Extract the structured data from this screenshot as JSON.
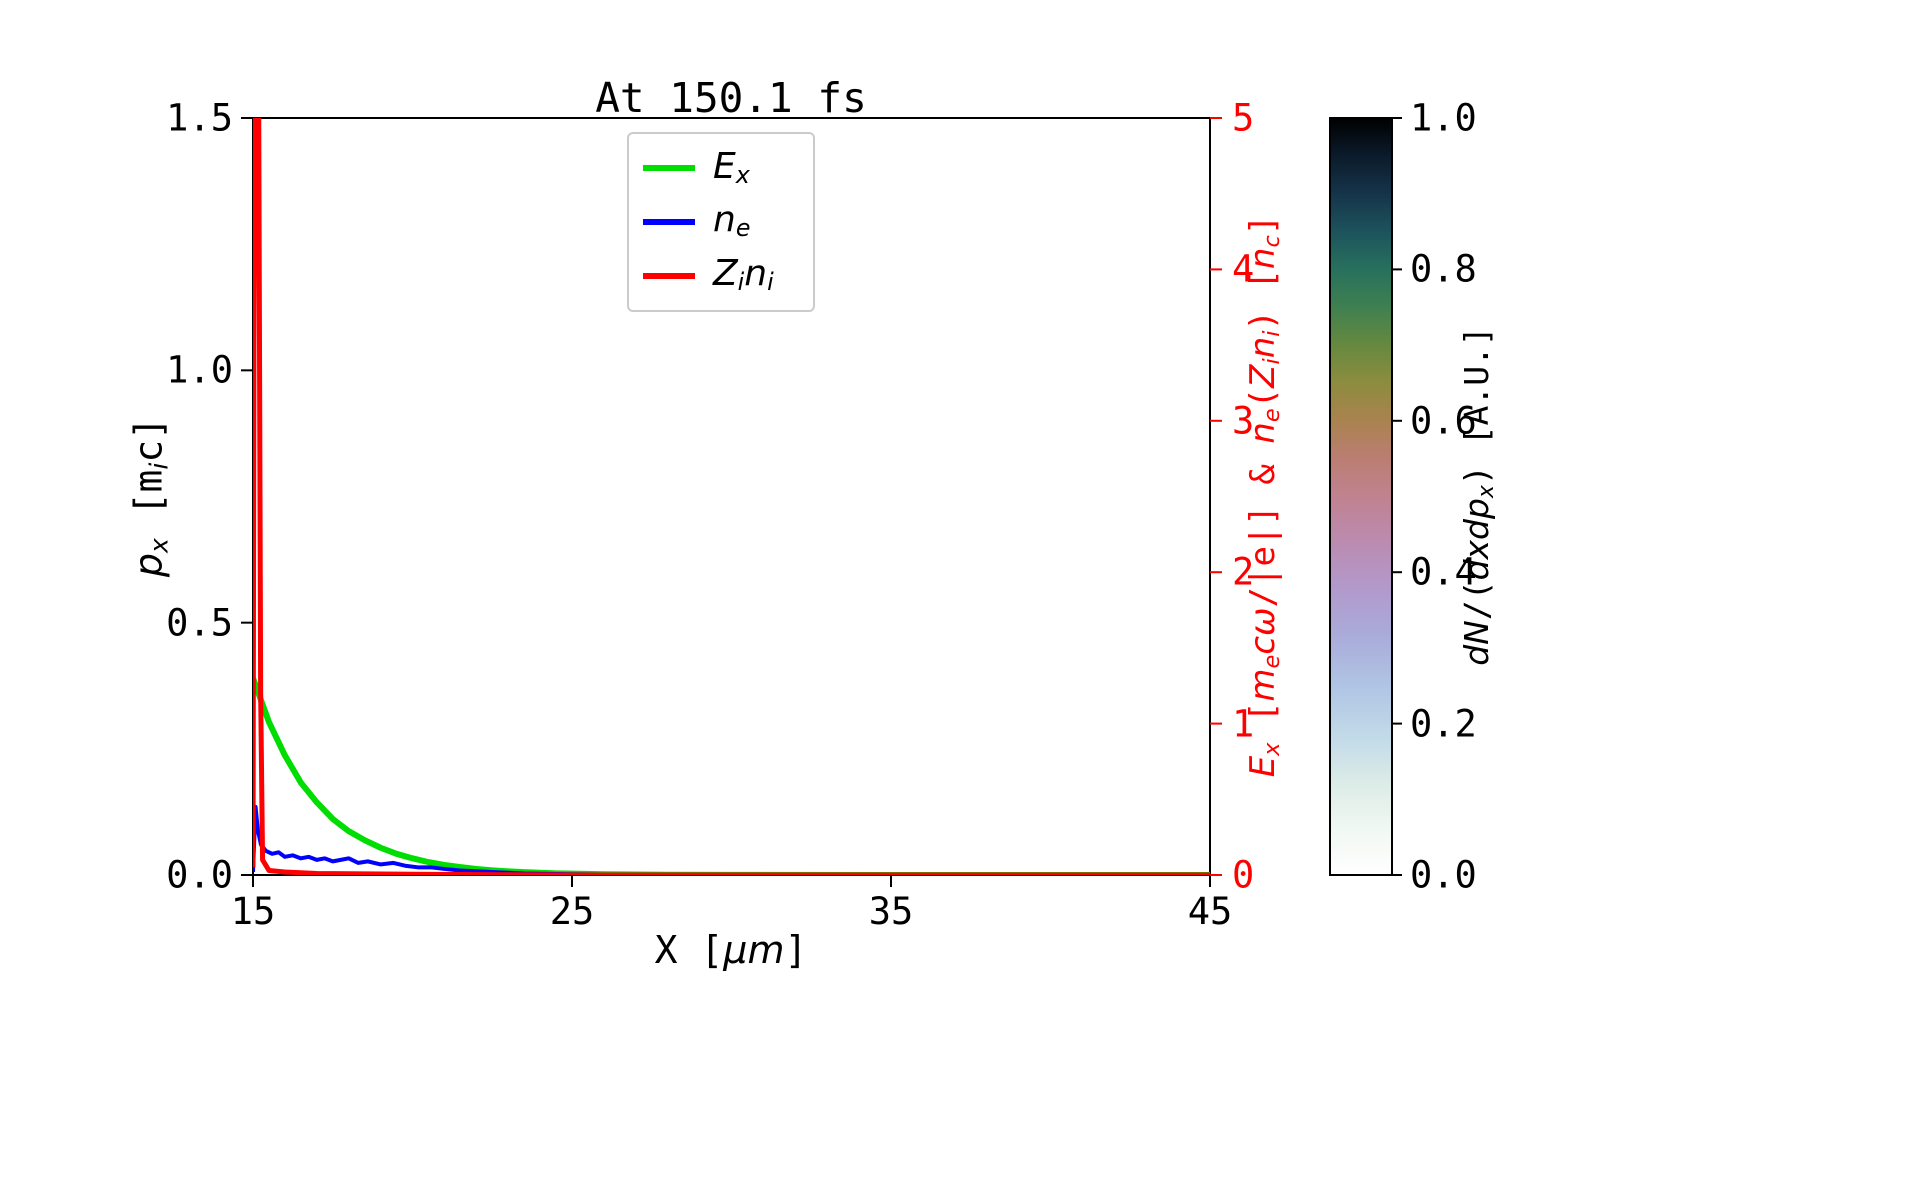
{
  "title": {
    "text": "At 150.1 fs"
  },
  "colors": {
    "ex_line": "#00dd00",
    "ne_line": "#0000ff",
    "zini_line": "#ff0000",
    "right_axis": "#ff0000",
    "spine": "#000000",
    "legend_border": "#cbcbcb",
    "background": "#ffffff"
  },
  "labels": {
    "xlabel": [
      {
        "t": "X ["
      },
      {
        "t": "μm",
        "it": true
      },
      {
        "t": "]"
      }
    ],
    "ylabel_left": [
      {
        "t": "p",
        "it": true
      },
      {
        "t": "x",
        "it": true,
        "sb": true
      },
      {
        "t": " [m"
      },
      {
        "t": "i",
        "it": true,
        "sb": true
      },
      {
        "t": "c]"
      }
    ],
    "ylabel_right": [
      {
        "t": "E",
        "it": true
      },
      {
        "t": "x",
        "it": true,
        "sb": true
      },
      {
        "t": " ["
      },
      {
        "t": "m",
        "it": true
      },
      {
        "t": "e",
        "it": true,
        "sb": true
      },
      {
        "t": "c",
        "it": true
      },
      {
        "t": "ω",
        "it": true
      },
      {
        "t": "/|e|] & "
      },
      {
        "t": "n",
        "it": true
      },
      {
        "t": "e",
        "it": true,
        "sb": true
      },
      {
        "t": "("
      },
      {
        "t": "Z",
        "it": true
      },
      {
        "t": "i",
        "it": true,
        "sb": true
      },
      {
        "t": "n",
        "it": true
      },
      {
        "t": "i",
        "it": true,
        "sb": true
      },
      {
        "t": ") ["
      },
      {
        "t": "n",
        "it": true
      },
      {
        "t": "c",
        "it": true,
        "sb": true
      },
      {
        "t": "]"
      }
    ],
    "colorbar": [
      {
        "t": "dN",
        "it": true
      },
      {
        "t": "/("
      },
      {
        "t": "dxdp",
        "it": true
      },
      {
        "t": "x",
        "it": true,
        "sb": true
      },
      {
        "t": ") [A.U.]"
      }
    ]
  },
  "legend": {
    "items": [
      {
        "name": "Ex",
        "color": "#00dd00",
        "label": [
          {
            "t": "E",
            "it": true
          },
          {
            "t": "x",
            "it": true,
            "sb": true
          }
        ]
      },
      {
        "name": "ne",
        "color": "#0000ff",
        "label": [
          {
            "t": "n",
            "it": true
          },
          {
            "t": "e",
            "it": true,
            "sb": true
          }
        ]
      },
      {
        "name": "Zini",
        "color": "#ff0000",
        "label": [
          {
            "t": "Z",
            "it": true
          },
          {
            "t": "i",
            "it": true,
            "sb": true
          },
          {
            "t": "n",
            "it": true
          },
          {
            "t": "i",
            "it": true,
            "sb": true
          }
        ]
      }
    ]
  },
  "colorbar": {
    "ticks": [
      0,
      0.2,
      0.4,
      0.6,
      0.8,
      1
    ],
    "stops": [
      {
        "p": 0.0,
        "c": "#ffffff"
      },
      {
        "p": 0.06,
        "c": "#f1f8f3"
      },
      {
        "p": 0.12,
        "c": "#dcece7"
      },
      {
        "p": 0.18,
        "c": "#c3dbe8"
      },
      {
        "p": 0.25,
        "c": "#b0c4e5"
      },
      {
        "p": 0.32,
        "c": "#aaaad9"
      },
      {
        "p": 0.38,
        "c": "#b299cb"
      },
      {
        "p": 0.44,
        "c": "#bb8bb0"
      },
      {
        "p": 0.5,
        "c": "#c08290"
      },
      {
        "p": 0.55,
        "c": "#bb7e72"
      },
      {
        "p": 0.6,
        "c": "#a9834f"
      },
      {
        "p": 0.65,
        "c": "#8d8c3f"
      },
      {
        "p": 0.7,
        "c": "#66893f"
      },
      {
        "p": 0.75,
        "c": "#3f8050"
      },
      {
        "p": 0.8,
        "c": "#28705d"
      },
      {
        "p": 0.85,
        "c": "#1d535c"
      },
      {
        "p": 0.9,
        "c": "#153449"
      },
      {
        "p": 0.95,
        "c": "#0b1b2b"
      },
      {
        "p": 1.0,
        "c": "#000000"
      }
    ]
  },
  "chart_data": {
    "type": "line",
    "title": "At 150.1 fs",
    "xlabel": "X [μm]",
    "ylabel_left": "p_x [m_i c]",
    "ylabel_right": "E_x [m_e cω/|e|] & n_e(Z_i n_i) [n_c]",
    "xlim": [
      15,
      45
    ],
    "ylim_left": [
      0,
      1.5
    ],
    "ylim_right": [
      0,
      5
    ],
    "x_ticks": [
      15,
      25,
      35,
      45
    ],
    "left_ticks": [
      0,
      0.5,
      1,
      1.5
    ],
    "right_ticks": [
      0,
      1,
      2,
      3,
      4,
      5
    ],
    "grid": false,
    "legend_position": "upper center-left",
    "series": [
      {
        "name": "E_x",
        "axis": "right",
        "color": "#00dd00",
        "x": [
          15,
          15.5,
          16,
          16.5,
          17,
          17.5,
          18,
          18.5,
          19,
          19.5,
          20,
          20.5,
          21,
          21.5,
          22,
          22.5,
          23,
          23.5,
          24,
          24.5,
          25,
          26,
          27,
          28,
          30,
          35,
          40,
          45
        ],
        "y": [
          1.3,
          1.01,
          0.79,
          0.61,
          0.48,
          0.37,
          0.29,
          0.23,
          0.18,
          0.14,
          0.11,
          0.085,
          0.066,
          0.052,
          0.04,
          0.031,
          0.024,
          0.019,
          0.015,
          0.011,
          0.009,
          0.005,
          0.003,
          0.002,
          0.001,
          0,
          0,
          0
        ]
      },
      {
        "name": "n_e",
        "axis": "right",
        "color": "#0000ff",
        "x": [
          15,
          15.08,
          15.15,
          15.25,
          15.4,
          15.6,
          15.8,
          16,
          16.25,
          16.5,
          16.75,
          17,
          17.25,
          17.5,
          17.75,
          18,
          18.3,
          18.6,
          19,
          19.4,
          19.8,
          20.2,
          20.6,
          21,
          21.5,
          22,
          22.5,
          23,
          23.5,
          24,
          25,
          26,
          28,
          30,
          35,
          40,
          45
        ],
        "y": [
          0.02,
          0.45,
          0.3,
          0.2,
          0.16,
          0.14,
          0.15,
          0.12,
          0.13,
          0.11,
          0.12,
          0.1,
          0.11,
          0.09,
          0.1,
          0.11,
          0.08,
          0.09,
          0.07,
          0.08,
          0.06,
          0.05,
          0.05,
          0.04,
          0.03,
          0.025,
          0.02,
          0.015,
          0.01,
          0.008,
          0.005,
          0.003,
          0.001,
          0,
          0,
          0,
          0
        ]
      },
      {
        "name": "Z_i n_i",
        "axis": "right",
        "color": "#ff0000",
        "x": [
          15,
          15.03,
          15.06,
          15.18,
          15.24,
          15.3,
          15.5,
          16,
          17,
          20,
          25,
          30,
          35,
          40,
          45
        ],
        "y": [
          0.05,
          3.5,
          5,
          5,
          1.2,
          0.1,
          0.03,
          0.02,
          0.01,
          0.005,
          0,
          0,
          0,
          0,
          0
        ]
      }
    ],
    "colorbar": {
      "label": "dN/(dxdp_x) [A.U.]",
      "range": [
        0,
        1
      ],
      "ticks": [
        0,
        0.2,
        0.4,
        0.6,
        0.8,
        1
      ],
      "colormap": "cubehelix reversed (white at 0 to black at 1)"
    }
  }
}
